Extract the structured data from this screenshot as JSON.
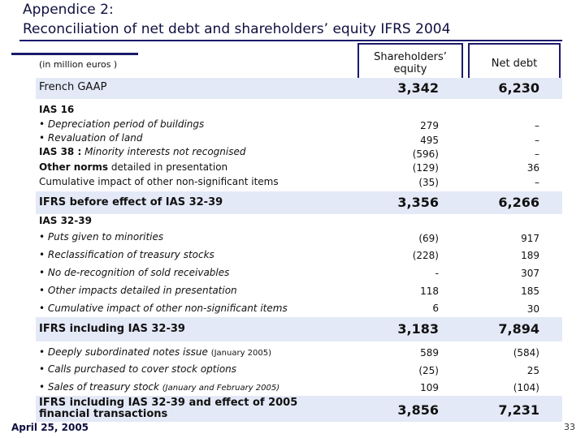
{
  "title": {
    "line1": "Appendice 2:",
    "line2": "Reconciliation of net debt and shareholders’ equity IFRS 2004"
  },
  "units": "(in million euros )",
  "columns": {
    "equity": "Shareholders’ equity",
    "net_debt": "Net debt"
  },
  "french_gaap": {
    "label": "French GAAP",
    "equity": "3,342",
    "net_debt": "6,230"
  },
  "ias16": {
    "header": "IAS 16",
    "rows": [
      {
        "label": "• Depreciation period of buildings",
        "equity": "279",
        "net_debt": "–"
      },
      {
        "label": "• Revaluation of land",
        "equity": "495",
        "net_debt": "–"
      },
      {
        "label_bold": "IAS 38 :",
        "label_rest": " Minority interests not recognised",
        "equity": "(596)",
        "net_debt": "–"
      },
      {
        "label_bold": "Other norms",
        "label_rest": " detailed in presentation",
        "equity": "(129)",
        "net_debt": "36"
      },
      {
        "label": "Cumulative impact of other non-significant items",
        "equity": "(35)",
        "net_debt": "–"
      }
    ]
  },
  "before_ias32": {
    "label": "IFRS before effect of IAS 32-39",
    "equity": "3,356",
    "net_debt": "6,266"
  },
  "ias32": {
    "header": "IAS 32-39",
    "rows": [
      {
        "label": "• Puts given to minorities",
        "equity": "(69)",
        "net_debt": "917"
      },
      {
        "label": "• Reclassification of treasury stocks",
        "equity": "(228)",
        "net_debt": "189"
      },
      {
        "label": "• No de-recognition of sold receivables",
        "equity": "-",
        "net_debt": "307"
      },
      {
        "label": "• Other impacts detailed in presentation",
        "equity": "118",
        "net_debt": "185"
      },
      {
        "label": "• Cumulative impact of other non-significant items",
        "equity": "6",
        "net_debt": "30"
      }
    ]
  },
  "including_ias32": {
    "label": "IFRS including IAS 32-39",
    "equity": "3,183",
    "net_debt": "7,894"
  },
  "transactions": [
    {
      "label": "• Deeply subordinated notes issue ",
      "note": "(January 2005)",
      "equity": "589",
      "net_debt": "(584)"
    },
    {
      "label": "• Calls purchased to cover stock options",
      "note": "",
      "equity": "(25)",
      "net_debt": "25"
    },
    {
      "label": "• Sales of treasury stock ",
      "note": "(January and February 2005)",
      "equity": "109",
      "net_debt": "(104)"
    }
  ],
  "final": {
    "label_line1": "IFRS including IAS 32-39 and effect of 2005",
    "label_line2": "financial transactions",
    "equity": "3,856",
    "net_debt": "7,231"
  },
  "footer": {
    "date": "April 25, 2005",
    "page": "33"
  }
}
